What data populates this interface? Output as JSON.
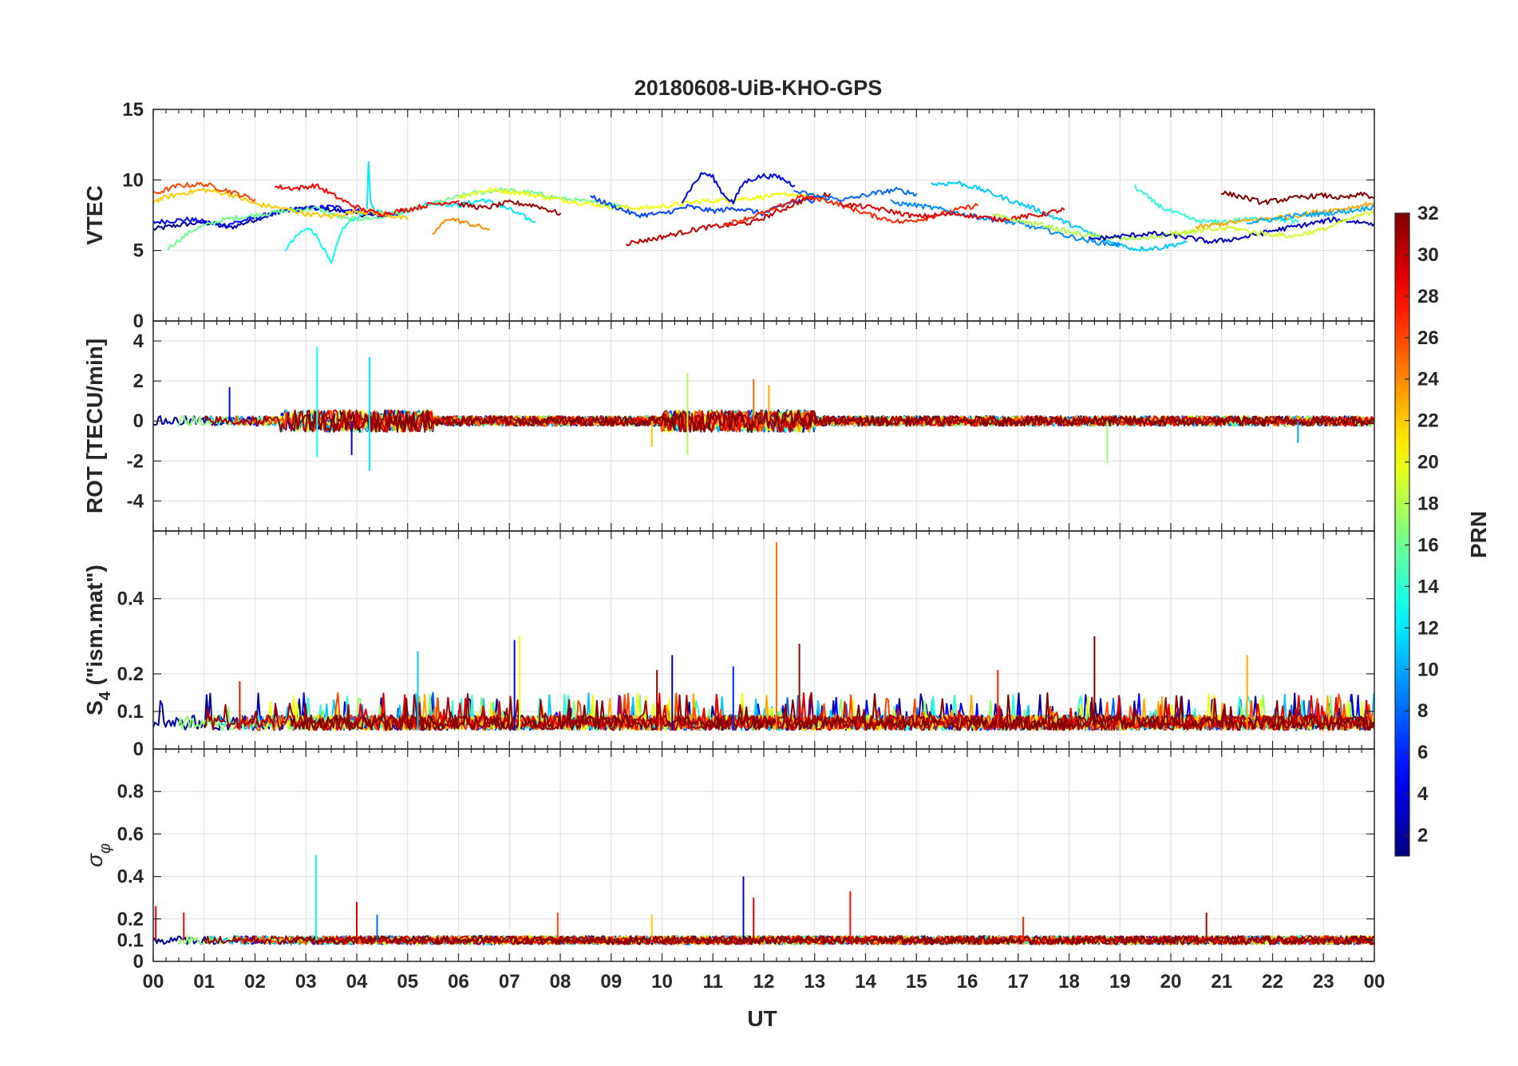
{
  "chart_data": {
    "type": "line",
    "title": "20180608-UiB-KHO-GPS",
    "xlabel": "UT",
    "x_unit": "hours UT",
    "xlim": [
      0,
      24
    ],
    "x_ticks": [
      0,
      1,
      2,
      3,
      4,
      5,
      6,
      7,
      8,
      9,
      10,
      11,
      12,
      13,
      14,
      15,
      16,
      17,
      18,
      19,
      20,
      21,
      22,
      23,
      24
    ],
    "x_tick_labels": [
      "00",
      "01",
      "02",
      "03",
      "04",
      "05",
      "06",
      "07",
      "08",
      "09",
      "10",
      "11",
      "12",
      "13",
      "14",
      "15",
      "16",
      "17",
      "18",
      "19",
      "20",
      "21",
      "22",
      "23",
      "00"
    ],
    "grid": true,
    "colorbar": {
      "label": "PRN",
      "colormap": "jet",
      "range": [
        1,
        32
      ],
      "tick_values": [
        2,
        4,
        6,
        8,
        10,
        12,
        14,
        16,
        18,
        20,
        22,
        24,
        26,
        28,
        30,
        32
      ],
      "tick_labels": [
        "2",
        "4",
        "6",
        "8",
        "10",
        "12",
        "14",
        "16",
        "18",
        "20",
        "22",
        "24",
        "26",
        "28",
        "30",
        "32"
      ],
      "placement": "right"
    },
    "panels": [
      {
        "id": "vtec",
        "ylabel": "VTEC",
        "ylim": [
          0,
          15
        ],
        "y_ticks": [
          0,
          5,
          10,
          15
        ],
        "y_tick_labels": [
          "0",
          "5",
          "10",
          "15"
        ],
        "series": [
          {
            "prn": 2,
            "x": [
              0,
              0.5,
              1,
              1.5,
              2,
              2.5,
              3,
              3.5,
              4,
              4.5,
              5
            ],
            "y": [
              6.5,
              6.8,
              7.0,
              6.6,
              7.2,
              7.8,
              8.0,
              7.9,
              7.6,
              7.4,
              7.8
            ]
          },
          {
            "prn": 5,
            "x": [
              0,
              0.7,
              1.4,
              2.1,
              2.8,
              3.5,
              4.2,
              4.8
            ],
            "y": [
              7.0,
              7.2,
              6.8,
              7.4,
              7.9,
              8.1,
              7.7,
              7.5
            ]
          },
          {
            "prn": 13,
            "x": [
              2.6,
              2.9,
              3.1,
              3.3,
              3.5,
              3.7,
              3.9,
              4.1
            ],
            "y": [
              5.1,
              6.3,
              6.6,
              5.5,
              4.0,
              6.4,
              7.2,
              7.5
            ]
          },
          {
            "prn": 12,
            "x": [
              4.2,
              4.23,
              4.27,
              4.35,
              4.6,
              5.0,
              5.5,
              6.0,
              6.5,
              7.0,
              7.5
            ],
            "y": [
              8.0,
              11.3,
              8.5,
              7.8,
              7.6,
              7.8,
              8.4,
              8.2,
              8.6,
              7.9,
              7.0
            ]
          },
          {
            "prn": 16,
            "x": [
              0.3,
              0.8,
              1.4,
              2.0,
              2.6,
              3.2,
              3.8,
              4.4,
              5.0,
              5.6,
              6.2,
              6.8,
              7.4,
              8.0,
              8.6,
              9.2
            ],
            "y": [
              5.2,
              6.5,
              7.2,
              7.5,
              7.8,
              8.0,
              7.2,
              7.3,
              7.8,
              8.4,
              9.0,
              9.3,
              9.1,
              8.7,
              8.4,
              8.2
            ]
          },
          {
            "prn": 20,
            "x": [
              6.0,
              6.6,
              7.2,
              7.8,
              8.4,
              9.0,
              9.6,
              10.2,
              10.8,
              11.4,
              12.0,
              12.6,
              13.2
            ],
            "y": [
              8.8,
              9.3,
              9.1,
              8.7,
              8.4,
              8.1,
              8.0,
              8.2,
              8.5,
              8.6,
              8.8,
              9.0,
              8.6
            ]
          },
          {
            "prn": 22,
            "x": [
              0,
              0.5,
              1.0,
              1.5,
              2.0,
              2.5,
              3.0,
              3.5,
              4.0,
              4.5,
              5.0
            ],
            "y": [
              8.5,
              9.0,
              9.3,
              9.0,
              8.3,
              8.0,
              7.6,
              7.4,
              7.8,
              7.6,
              7.2
            ]
          },
          {
            "prn": 24,
            "x": [
              5.5,
              5.8,
              6.1,
              6.6
            ],
            "y": [
              6.2,
              7.3,
              7.0,
              6.5
            ]
          },
          {
            "prn": 26,
            "x": [
              0,
              0.5,
              1.0,
              1.5,
              2.0
            ],
            "y": [
              9.0,
              9.6,
              9.7,
              9.2,
              8.6
            ]
          },
          {
            "prn": 28,
            "x": [
              2.4,
              2.8,
              3.2,
              3.5,
              3.8,
              4.1,
              4.5,
              5.0,
              5.5,
              6.0
            ],
            "y": [
              9.5,
              9.4,
              9.6,
              9.0,
              8.4,
              7.9,
              7.6,
              7.9,
              8.3,
              8.5
            ]
          },
          {
            "prn": 31,
            "x": [
              6.0,
              6.5,
              7.0,
              7.5,
              8.0
            ],
            "y": [
              8.3,
              8.0,
              8.4,
              8.2,
              7.6
            ]
          },
          {
            "prn": 7,
            "x": [
              8.6,
              9.0,
              9.5,
              10.0,
              10.5,
              11.0,
              11.5,
              12.0,
              12.5,
              13.0
            ],
            "y": [
              8.8,
              8.2,
              7.5,
              7.6,
              8.1,
              7.8,
              8.0,
              7.6,
              8.4,
              8.6
            ]
          },
          {
            "prn": 4,
            "x": [
              10.4,
              10.6,
              10.8,
              11.0,
              11.2,
              11.4,
              11.6,
              11.8,
              12.0,
              12.3,
              12.6
            ],
            "y": [
              8.5,
              9.6,
              10.5,
              10.2,
              9.0,
              8.4,
              9.8,
              10.1,
              10.3,
              10.2,
              9.6
            ]
          },
          {
            "prn": 30,
            "x": [
              9.3,
              9.8,
              10.3,
              10.8,
              11.3,
              11.8,
              12.3,
              12.8,
              13.3
            ],
            "y": [
              5.5,
              5.8,
              6.2,
              6.6,
              6.8,
              7.0,
              7.8,
              8.6,
              9.0
            ]
          },
          {
            "prn": 27,
            "x": [
              11.2,
              11.7,
              12.2,
              12.7,
              13.2,
              13.7,
              14.2,
              14.7,
              15.2,
              15.7,
              16.2
            ],
            "y": [
              6.8,
              7.3,
              7.9,
              8.8,
              8.6,
              8.0,
              7.4,
              7.0,
              7.3,
              7.8,
              8.2
            ]
          },
          {
            "prn": 8,
            "x": [
              12.6,
              13.1,
              13.6,
              14.1,
              14.6,
              15.0
            ],
            "y": [
              9.2,
              8.8,
              8.6,
              9.0,
              9.3,
              9.0
            ]
          },
          {
            "prn": 11,
            "x": [
              15.3,
              15.8,
              16.3,
              16.8,
              17.3,
              17.8,
              18.3,
              18.8,
              19.3,
              19.8,
              20.3
            ],
            "y": [
              9.7,
              9.8,
              9.3,
              8.6,
              8.0,
              7.2,
              6.4,
              5.6,
              5.1,
              5.2,
              5.6
            ]
          },
          {
            "prn": 9,
            "x": [
              14.5,
              15.0,
              15.5,
              16.0,
              16.5,
              17.0,
              17.5,
              18.0,
              18.5,
              19.0
            ],
            "y": [
              8.4,
              8.2,
              7.9,
              7.5,
              7.2,
              6.9,
              6.5,
              6.0,
              5.6,
              5.4
            ]
          },
          {
            "prn": 29,
            "x": [
              13.5,
              14.2,
              15.0,
              15.8,
              16.6,
              17.4,
              17.9
            ],
            "y": [
              8.3,
              8.0,
              7.4,
              7.6,
              7.2,
              7.5,
              7.9
            ]
          },
          {
            "prn": 18,
            "x": [
              16.5,
              17.0,
              17.5,
              18.0,
              18.5,
              19.0,
              19.5,
              20.0,
              20.5
            ],
            "y": [
              7.5,
              7.1,
              6.8,
              6.3,
              6.0,
              5.8,
              5.9,
              6.1,
              6.3
            ]
          },
          {
            "prn": 14,
            "x": [
              19.3,
              19.6,
              19.9,
              20.2,
              20.5,
              20.9,
              21.5,
              22.0,
              22.5
            ],
            "y": [
              9.5,
              8.6,
              7.9,
              7.5,
              7.1,
              7.0,
              7.2,
              7.3,
              7.0
            ]
          },
          {
            "prn": 3,
            "x": [
              18.4,
              19.0,
              19.6,
              20.2,
              20.8,
              21.4,
              22.0,
              22.6,
              23.2,
              24.0
            ],
            "y": [
              5.8,
              6.0,
              6.2,
              6.0,
              5.6,
              5.9,
              6.4,
              6.8,
              7.2,
              6.9
            ]
          },
          {
            "prn": 32,
            "x": [
              21.0,
              21.4,
              21.8,
              22.2,
              22.6,
              23.0,
              23.4,
              23.8,
              24.0
            ],
            "y": [
              9.1,
              8.8,
              8.4,
              8.6,
              8.8,
              8.9,
              8.7,
              9.0,
              8.7
            ]
          },
          {
            "prn": 23,
            "x": [
              20.5,
              21.0,
              21.5,
              22.0,
              22.5,
              23.0,
              23.5,
              24.0
            ],
            "y": [
              6.6,
              6.9,
              7.1,
              7.3,
              7.5,
              7.8,
              8.0,
              8.4
            ]
          },
          {
            "prn": 19,
            "x": [
              20.0,
              20.6,
              21.2,
              21.8,
              22.4,
              23.0,
              23.5,
              24.0
            ],
            "y": [
              6.2,
              6.4,
              6.6,
              6.2,
              6.0,
              6.5,
              7.2,
              7.8
            ]
          },
          {
            "prn": 10,
            "x": [
              21.5,
              22.0,
              22.5,
              23.0,
              23.5,
              24.0
            ],
            "y": [
              7.0,
              7.2,
              7.5,
              7.6,
              7.8,
              8.1
            ]
          }
        ]
      },
      {
        "id": "rot",
        "ylabel": "ROT [TECU/min]",
        "ylim": [
          -5.5,
          5
        ],
        "y_ticks": [
          -4,
          -2,
          0,
          2,
          4
        ],
        "y_tick_labels": [
          "-4",
          "-2",
          "0",
          "2",
          "4"
        ],
        "baseline": 0,
        "noise_amplitude": 0.25,
        "spikes": [
          {
            "x": 3.22,
            "y": 3.7,
            "prn": 13
          },
          {
            "x": 3.22,
            "y": -1.8,
            "prn": 13
          },
          {
            "x": 4.25,
            "y": 3.2,
            "prn": 12
          },
          {
            "x": 4.25,
            "y": -2.5,
            "prn": 12
          },
          {
            "x": 3.9,
            "y": -1.7,
            "prn": 4
          },
          {
            "x": 1.5,
            "y": 1.7,
            "prn": 5
          },
          {
            "x": 10.5,
            "y": 2.4,
            "prn": 18
          },
          {
            "x": 10.5,
            "y": -1.7,
            "prn": 18
          },
          {
            "x": 11.8,
            "y": 2.1,
            "prn": 25
          },
          {
            "x": 12.1,
            "y": 1.8,
            "prn": 23
          },
          {
            "x": 18.75,
            "y": -2.1,
            "prn": 17
          },
          {
            "x": 22.5,
            "y": -1.1,
            "prn": 10
          },
          {
            "x": 9.8,
            "y": -1.3,
            "prn": 22
          }
        ]
      },
      {
        "id": "s4",
        "ylabel": "S4 (\"ism.mat\")",
        "ylabel_main": "S",
        "ylabel_sub": "4",
        "ylabel_rest": " (\"ism.mat\")",
        "ylim": [
          0,
          0.58
        ],
        "y_ticks": [
          0,
          0.1,
          0.2,
          0.4
        ],
        "y_tick_labels": [
          "0",
          "0.1",
          "0.2",
          "0.4"
        ],
        "baseline": 0.05,
        "noise_amplitude": 0.04,
        "spikes": [
          {
            "x": 12.25,
            "y": 0.55,
            "prn": 25
          },
          {
            "x": 12.7,
            "y": 0.28,
            "prn": 31
          },
          {
            "x": 7.2,
            "y": 0.3,
            "prn": 20
          },
          {
            "x": 7.1,
            "y": 0.29,
            "prn": 4
          },
          {
            "x": 18.5,
            "y": 0.3,
            "prn": 32
          },
          {
            "x": 21.5,
            "y": 0.25,
            "prn": 23
          },
          {
            "x": 10.2,
            "y": 0.25,
            "prn": 3
          },
          {
            "x": 11.4,
            "y": 0.22,
            "prn": 6
          },
          {
            "x": 5.2,
            "y": 0.26,
            "prn": 11
          },
          {
            "x": 16.6,
            "y": 0.21,
            "prn": 27
          },
          {
            "x": 9.9,
            "y": 0.21,
            "prn": 31
          },
          {
            "x": 1.7,
            "y": 0.18,
            "prn": 28
          }
        ]
      },
      {
        "id": "sigma_phi",
        "ylabel": "σφ",
        "ylabel_main": "σ",
        "ylabel_sub": "φ",
        "ylim": [
          0,
          1
        ],
        "y_ticks": [
          0,
          0.1,
          0.2,
          0.4,
          0.6,
          0.8
        ],
        "y_tick_labels": [
          "0",
          "0.1",
          "0.2",
          "0.4",
          "0.6",
          "0.8"
        ],
        "baseline": 0.1,
        "noise_amplitude": 0.02,
        "spikes": [
          {
            "x": 3.2,
            "y": 0.5,
            "prn": 13
          },
          {
            "x": 11.6,
            "y": 0.4,
            "prn": 3
          },
          {
            "x": 13.7,
            "y": 0.33,
            "prn": 28
          },
          {
            "x": 11.8,
            "y": 0.3,
            "prn": 29
          },
          {
            "x": 4.0,
            "y": 0.28,
            "prn": 29
          },
          {
            "x": 0.05,
            "y": 0.26,
            "prn": 29
          },
          {
            "x": 0.6,
            "y": 0.23,
            "prn": 28
          },
          {
            "x": 7.95,
            "y": 0.23,
            "prn": 26
          },
          {
            "x": 9.8,
            "y": 0.22,
            "prn": 22
          },
          {
            "x": 20.7,
            "y": 0.23,
            "prn": 31
          },
          {
            "x": 17.1,
            "y": 0.21,
            "prn": 27
          },
          {
            "x": 4.4,
            "y": 0.22,
            "prn": 8
          }
        ]
      }
    ]
  }
}
